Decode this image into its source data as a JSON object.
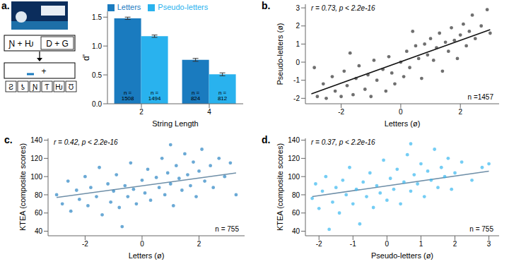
{
  "diagram": {
    "panel_label": "a.",
    "stimulus_pseudo": "Ɲ + Ƕ",
    "stimulus_letters": "D + G",
    "probe": "+",
    "options": [
      "Ƨ",
      "ƾ",
      "Ɲ",
      "Ƭ",
      "Ƕ",
      "Ʊ"
    ]
  },
  "chart_data": [
    {
      "panel_label": "",
      "type": "bar",
      "x_label": "String Length",
      "y_label": "d'",
      "categories": [
        "2",
        "4"
      ],
      "series": [
        {
          "name": "Letters",
          "color": "#1a7bbf",
          "values": [
            1.48,
            0.76
          ],
          "error": [
            0.02,
            0.025
          ],
          "n": [
            "n = 1508",
            "n = 824"
          ]
        },
        {
          "name": "Pseudo-letters",
          "color": "#29b2ee",
          "values": [
            1.17,
            0.51
          ],
          "error": [
            0.02,
            0.025
          ],
          "n": [
            "n = 1494",
            "n = 812"
          ]
        }
      ],
      "ylim": [
        0,
        1.6
      ],
      "yticks": [
        {
          "value": 0,
          "label": "0.0"
        },
        {
          "value": 0.5,
          "label": "0.5"
        },
        {
          "value": 1,
          "label": "1.0"
        },
        {
          "value": 1.5,
          "label": "1.5"
        }
      ],
      "legend": "top",
      "grid": false
    },
    {
      "panel_label": "b.",
      "type": "scatter",
      "x_label": "Letters (ø)",
      "y_label": "Pseudo-letters (ø)",
      "annotation": "r = 0.73, p < 2.2e-16",
      "n_label": "n =1457",
      "color": "#222222",
      "grid": false,
      "xlim": [
        -3.2,
        3.3
      ],
      "xticks": [
        -2,
        0,
        2
      ],
      "ylim": [
        -2.3,
        3.2
      ],
      "yticks": [
        -2,
        -1,
        0,
        1,
        2,
        3
      ],
      "fit": {
        "points": [
          [
            -3,
            -1.75
          ],
          [
            3,
            1.8
          ]
        ],
        "color": "#111111"
      },
      "points": [
        [
          -2.8,
          -1.9
        ],
        [
          -2.6,
          -1.2
        ],
        [
          -2.5,
          -2.0
        ],
        [
          -2.3,
          -0.8
        ],
        [
          -2.2,
          -1.6
        ],
        [
          -2.0,
          -1.9
        ],
        [
          -1.9,
          -0.5
        ],
        [
          -1.8,
          -1.3
        ],
        [
          -1.6,
          -1.8
        ],
        [
          -1.5,
          -0.9
        ],
        [
          -1.4,
          -0.2
        ],
        [
          -1.2,
          -1.5
        ],
        [
          -1.1,
          -0.7
        ],
        [
          -1.0,
          -1.9
        ],
        [
          -0.9,
          0.1
        ],
        [
          -0.8,
          -1.0
        ],
        [
          -0.6,
          -0.4
        ],
        [
          -0.5,
          -1.6
        ],
        [
          -0.4,
          0.3
        ],
        [
          -0.3,
          -0.6
        ],
        [
          -0.2,
          -1.2
        ],
        [
          0.0,
          0.0
        ],
        [
          0.1,
          -0.8
        ],
        [
          0.2,
          0.6
        ],
        [
          0.3,
          -0.3
        ],
        [
          0.5,
          0.9
        ],
        [
          0.6,
          0.2
        ],
        [
          0.7,
          -0.9
        ],
        [
          0.8,
          1.0
        ],
        [
          0.9,
          0.4
        ],
        [
          1.0,
          1.3
        ],
        [
          1.1,
          0.1
        ],
        [
          1.2,
          0.8
        ],
        [
          1.3,
          1.6
        ],
        [
          1.4,
          -0.5
        ],
        [
          1.5,
          1.1
        ],
        [
          1.6,
          0.6
        ],
        [
          1.7,
          1.9
        ],
        [
          1.8,
          1.2
        ],
        [
          1.9,
          0.2
        ],
        [
          2.0,
          1.5
        ],
        [
          2.1,
          2.1
        ],
        [
          2.2,
          0.9
        ],
        [
          2.3,
          1.7
        ],
        [
          2.4,
          2.6
        ],
        [
          2.5,
          1.3
        ],
        [
          2.7,
          2.0
        ],
        [
          2.9,
          2.9
        ],
        [
          3.0,
          1.6
        ],
        [
          -2.9,
          -0.3
        ],
        [
          -1.7,
          0.5
        ],
        [
          0.4,
          1.7
        ]
      ]
    },
    {
      "panel_label": "c.",
      "type": "scatter",
      "x_label": "Letters (ø)",
      "y_label": "KTEA (composite scores)",
      "annotation": "r = 0.42, p < 2.2e-16",
      "n_label": "n = 755",
      "color": "#1a7bbf",
      "grid": false,
      "xlim": [
        -3.3,
        3.6
      ],
      "xticks": [
        -2,
        0,
        2
      ],
      "ylim": [
        35,
        142
      ],
      "yticks": [
        40,
        60,
        80,
        100,
        120,
        140
      ],
      "fit": {
        "points": [
          [
            -3,
            77
          ],
          [
            3.3,
            104
          ]
        ],
        "color": "#6f8fa8"
      },
      "points": [
        [
          -3.0,
          80
        ],
        [
          -2.8,
          70
        ],
        [
          -2.6,
          95
        ],
        [
          -2.5,
          62
        ],
        [
          -2.3,
          85
        ],
        [
          -2.2,
          75
        ],
        [
          -2.0,
          100
        ],
        [
          -1.9,
          68
        ],
        [
          -1.8,
          88
        ],
        [
          -1.6,
          78
        ],
        [
          -1.5,
          110
        ],
        [
          -1.4,
          58
        ],
        [
          -1.2,
          92
        ],
        [
          -1.1,
          72
        ],
        [
          -1.0,
          84
        ],
        [
          -0.9,
          102
        ],
        [
          -0.8,
          66
        ],
        [
          -0.6,
          90
        ],
        [
          -0.5,
          78
        ],
        [
          -0.4,
          115
        ],
        [
          -0.3,
          86
        ],
        [
          -0.2,
          70
        ],
        [
          0.0,
          96
        ],
        [
          0.1,
          82
        ],
        [
          0.2,
          108
        ],
        [
          0.3,
          74
        ],
        [
          0.5,
          99
        ],
        [
          0.6,
          88
        ],
        [
          0.7,
          120
        ],
        [
          0.8,
          80
        ],
        [
          0.9,
          104
        ],
        [
          1.0,
          92
        ],
        [
          1.1,
          68
        ],
        [
          1.2,
          112
        ],
        [
          1.3,
          98
        ],
        [
          1.4,
          85
        ],
        [
          1.5,
          125
        ],
        [
          1.6,
          102
        ],
        [
          1.7,
          90
        ],
        [
          1.8,
          116
        ],
        [
          1.9,
          78
        ],
        [
          2.0,
          106
        ],
        [
          2.1,
          130
        ],
        [
          2.2,
          95
        ],
        [
          2.4,
          112
        ],
        [
          2.5,
          88
        ],
        [
          2.7,
          120
        ],
        [
          2.9,
          100
        ],
        [
          3.1,
          115
        ],
        [
          3.3,
          80
        ],
        [
          -0.7,
          45
        ],
        [
          1.0,
          135
        ]
      ]
    },
    {
      "panel_label": "d.",
      "type": "scatter",
      "x_label": "Pseudo-letters (ø)",
      "y_label": "KTEA (composite scores)",
      "annotation": "r = 0.37, p < 2.2e-16",
      "n_label": "n = 755",
      "color": "#29b2ee",
      "grid": false,
      "xlim": [
        -2.4,
        3.3
      ],
      "xticks": [
        -2,
        -1,
        0,
        1,
        2,
        3
      ],
      "ylim": [
        35,
        142
      ],
      "yticks": [
        40,
        60,
        80,
        100,
        120,
        140
      ],
      "fit": {
        "points": [
          [
            -2.2,
            78
          ],
          [
            3,
            106
          ]
        ],
        "color": "#6f8fa8"
      },
      "points": [
        [
          -2.2,
          76
        ],
        [
          -2.1,
          92
        ],
        [
          -2.0,
          65
        ],
        [
          -1.9,
          84
        ],
        [
          -1.8,
          100
        ],
        [
          -1.6,
          72
        ],
        [
          -1.5,
          88
        ],
        [
          -1.4,
          60
        ],
        [
          -1.3,
          96
        ],
        [
          -1.2,
          80
        ],
        [
          -1.1,
          110
        ],
        [
          -1.0,
          70
        ],
        [
          -0.9,
          86
        ],
        [
          -0.8,
          48
        ],
        [
          -0.7,
          94
        ],
        [
          -0.6,
          78
        ],
        [
          -0.5,
          104
        ],
        [
          -0.4,
          66
        ],
        [
          -0.3,
          90
        ],
        [
          -0.2,
          82
        ],
        [
          -0.1,
          118
        ],
        [
          0.0,
          74
        ],
        [
          0.1,
          98
        ],
        [
          0.2,
          86
        ],
        [
          0.3,
          108
        ],
        [
          0.4,
          70
        ],
        [
          0.5,
          94
        ],
        [
          0.6,
          124
        ],
        [
          0.7,
          84
        ],
        [
          0.8,
          102
        ],
        [
          0.9,
          92
        ],
        [
          1.0,
          114
        ],
        [
          1.1,
          78
        ],
        [
          1.2,
          106
        ],
        [
          1.3,
          96
        ],
        [
          1.4,
          130
        ],
        [
          1.5,
          88
        ],
        [
          1.6,
          110
        ],
        [
          1.7,
          100
        ],
        [
          1.8,
          120
        ],
        [
          1.9,
          86
        ],
        [
          2.0,
          104
        ],
        [
          2.2,
          116
        ],
        [
          2.5,
          96
        ],
        [
          2.8,
          110
        ],
        [
          3.0,
          114
        ],
        [
          -1.7,
          42
        ],
        [
          0.7,
          136
        ]
      ]
    }
  ]
}
